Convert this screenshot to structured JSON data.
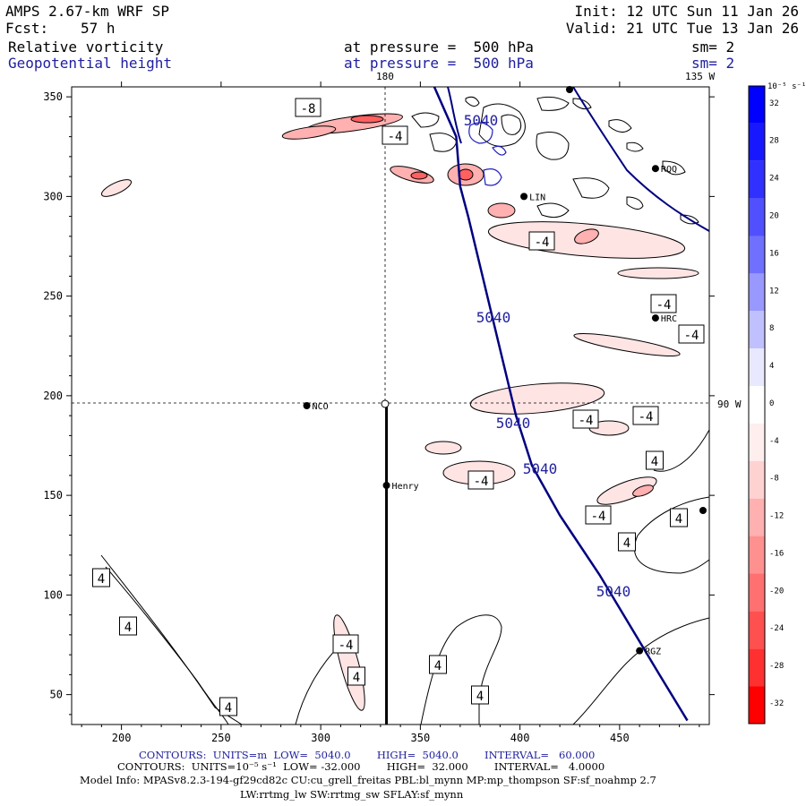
{
  "header": {
    "model": "AMPS 2.67-km WRF SP",
    "init": "Init: 12 UTC Sun 11 Jan 26",
    "fcst_label": "Fcst:",
    "fcst_value": "57 h",
    "valid": "Valid: 21 UTC Tue 13 Jan 26",
    "field1": "Relative vorticity",
    "field1_level": "at pressure =  500 hPa",
    "field1_sm": "sm= 2",
    "field2": "Geopotential height",
    "field2_level": "at pressure =  500 hPa",
    "field2_sm": "sm= 2",
    "lon_top_left": "180",
    "lon_top_right": "135 W",
    "lon_right": "90 W"
  },
  "colorbar": {
    "unit": "10⁻⁵ s⁻¹",
    "ticks": [
      "32",
      "28",
      "24",
      "20",
      "16",
      "12",
      "8",
      "4",
      "0",
      "-4",
      "-8",
      "-12",
      "-16",
      "-20",
      "-24",
      "-28",
      "-32"
    ],
    "colors": [
      "#0000ff",
      "#1818ff",
      "#3030ff",
      "#5050ff",
      "#7070ff",
      "#9898ff",
      "#c0c0ff",
      "#e8e8ff",
      "#ffffff",
      "#ffeeee",
      "#ffd2d2",
      "#ffb0b0",
      "#ff9090",
      "#ff7070",
      "#ff5050",
      "#ff3030",
      "#ff0000"
    ]
  },
  "stations": [
    {
      "name": "NCO",
      "x": 293,
      "y": 195
    },
    {
      "name": "Henry",
      "x": 333,
      "y": 155
    },
    {
      "name": "RQQ",
      "x": 468,
      "y": 314
    },
    {
      "name": "HRC",
      "x": 468,
      "y": 239
    },
    {
      "name": "LIN",
      "x": 402,
      "y": 300
    },
    {
      "name": "RGZ",
      "x": 460,
      "y": 72
    }
  ],
  "height_labels": [
    "5040",
    "5040",
    "5040",
    "5040",
    "5040"
  ],
  "vort_labels": [
    "-8",
    "-4",
    "-4",
    "-4",
    "-4",
    "-4",
    "-4",
    "-4",
    "-4",
    "-4",
    "4",
    "4",
    "4",
    "4",
    "4",
    "4",
    "4",
    "4",
    "4"
  ],
  "chart_data": {
    "type": "contour",
    "title": "Relative vorticity / Geopotential height at 500 hPa",
    "xlim": [
      175,
      495
    ],
    "ylim": [
      35,
      355
    ],
    "xticks": [
      200,
      250,
      300,
      350,
      400,
      450
    ],
    "yticks": [
      50,
      100,
      150,
      200,
      250,
      300,
      350
    ],
    "geopotential_contour": {
      "level_m": 5040,
      "points": [
        [
          357,
          355
        ],
        [
          368,
          330
        ],
        [
          370,
          305
        ],
        [
          374,
          290
        ],
        [
          380,
          265
        ],
        [
          386,
          240
        ],
        [
          392,
          215
        ],
        [
          398,
          190
        ],
        [
          406,
          165
        ],
        [
          420,
          140
        ],
        [
          440,
          110
        ],
        [
          455,
          85
        ],
        [
          470,
          60
        ],
        [
          484,
          37
        ]
      ]
    },
    "cross_section_line": {
      "x": 333,
      "y_from": 35,
      "y_to": 196
    },
    "crosshair": {
      "x": 333,
      "y": 196
    },
    "contours_info_1": {
      "units": "m",
      "low": "5040.0",
      "high": "5040.0",
      "interval": "60.000"
    },
    "contours_info_2": {
      "units": "10-5 s-1",
      "low": "-32.000",
      "high": "32.000",
      "interval": "4.0000"
    }
  },
  "footer": {
    "line1": "CONTOURS:  UNITS=m  LOW=  5040.0        HIGH=  5040.0        INTERVAL=   60.000",
    "line2": "CONTOURS:  UNITS=10⁻⁵ s⁻¹  LOW= -32.000        HIGH=  32.000        INTERVAL=   4.0000",
    "line3": "Model Info: MPASv8.2.3-194-gf29cd82c CU:cu_grell_freitas PBL:bl_mynn MP:mp_thompson SF:sf_noahmp 2.7",
    "line4": "LW:rrtmg_lw SW:rrtmg_sw SFLAY:sf_mynn"
  }
}
